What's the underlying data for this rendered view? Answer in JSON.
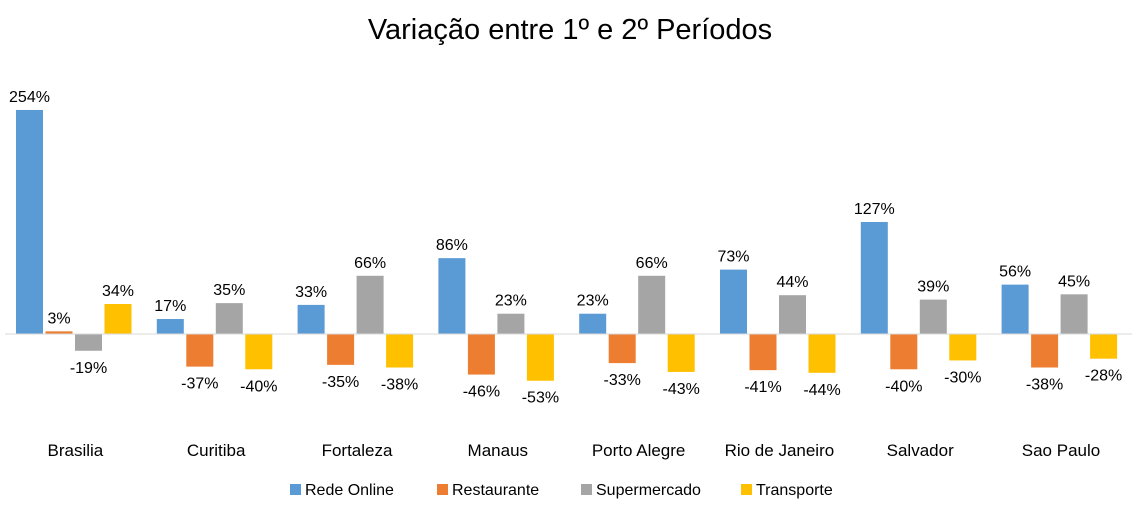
{
  "chart_data": {
    "type": "bar",
    "title": "Variação entre 1º e 2º Períodos",
    "categories": [
      "Brasilia",
      "Curitiba",
      "Fortaleza",
      "Manaus",
      "Porto Alegre",
      "Rio de Janeiro",
      "Salvador",
      "Sao Paulo"
    ],
    "series": [
      {
        "name": "Rede Online",
        "color": "#5B9BD5",
        "values": [
          254,
          17,
          33,
          86,
          23,
          73,
          127,
          56
        ]
      },
      {
        "name": "Restaurante",
        "color": "#ED7D31",
        "values": [
          3,
          -37,
          -35,
          -46,
          -33,
          -41,
          -40,
          -38
        ]
      },
      {
        "name": "Supermercado",
        "color": "#A5A5A5",
        "values": [
          -19,
          35,
          66,
          23,
          66,
          44,
          39,
          45
        ]
      },
      {
        "name": "Transporte",
        "color": "#FFC000",
        "values": [
          34,
          -40,
          -38,
          -53,
          -43,
          -44,
          -30,
          -28
        ]
      }
    ],
    "value_suffix": "%",
    "grid": false,
    "legend_position": "bottom"
  }
}
